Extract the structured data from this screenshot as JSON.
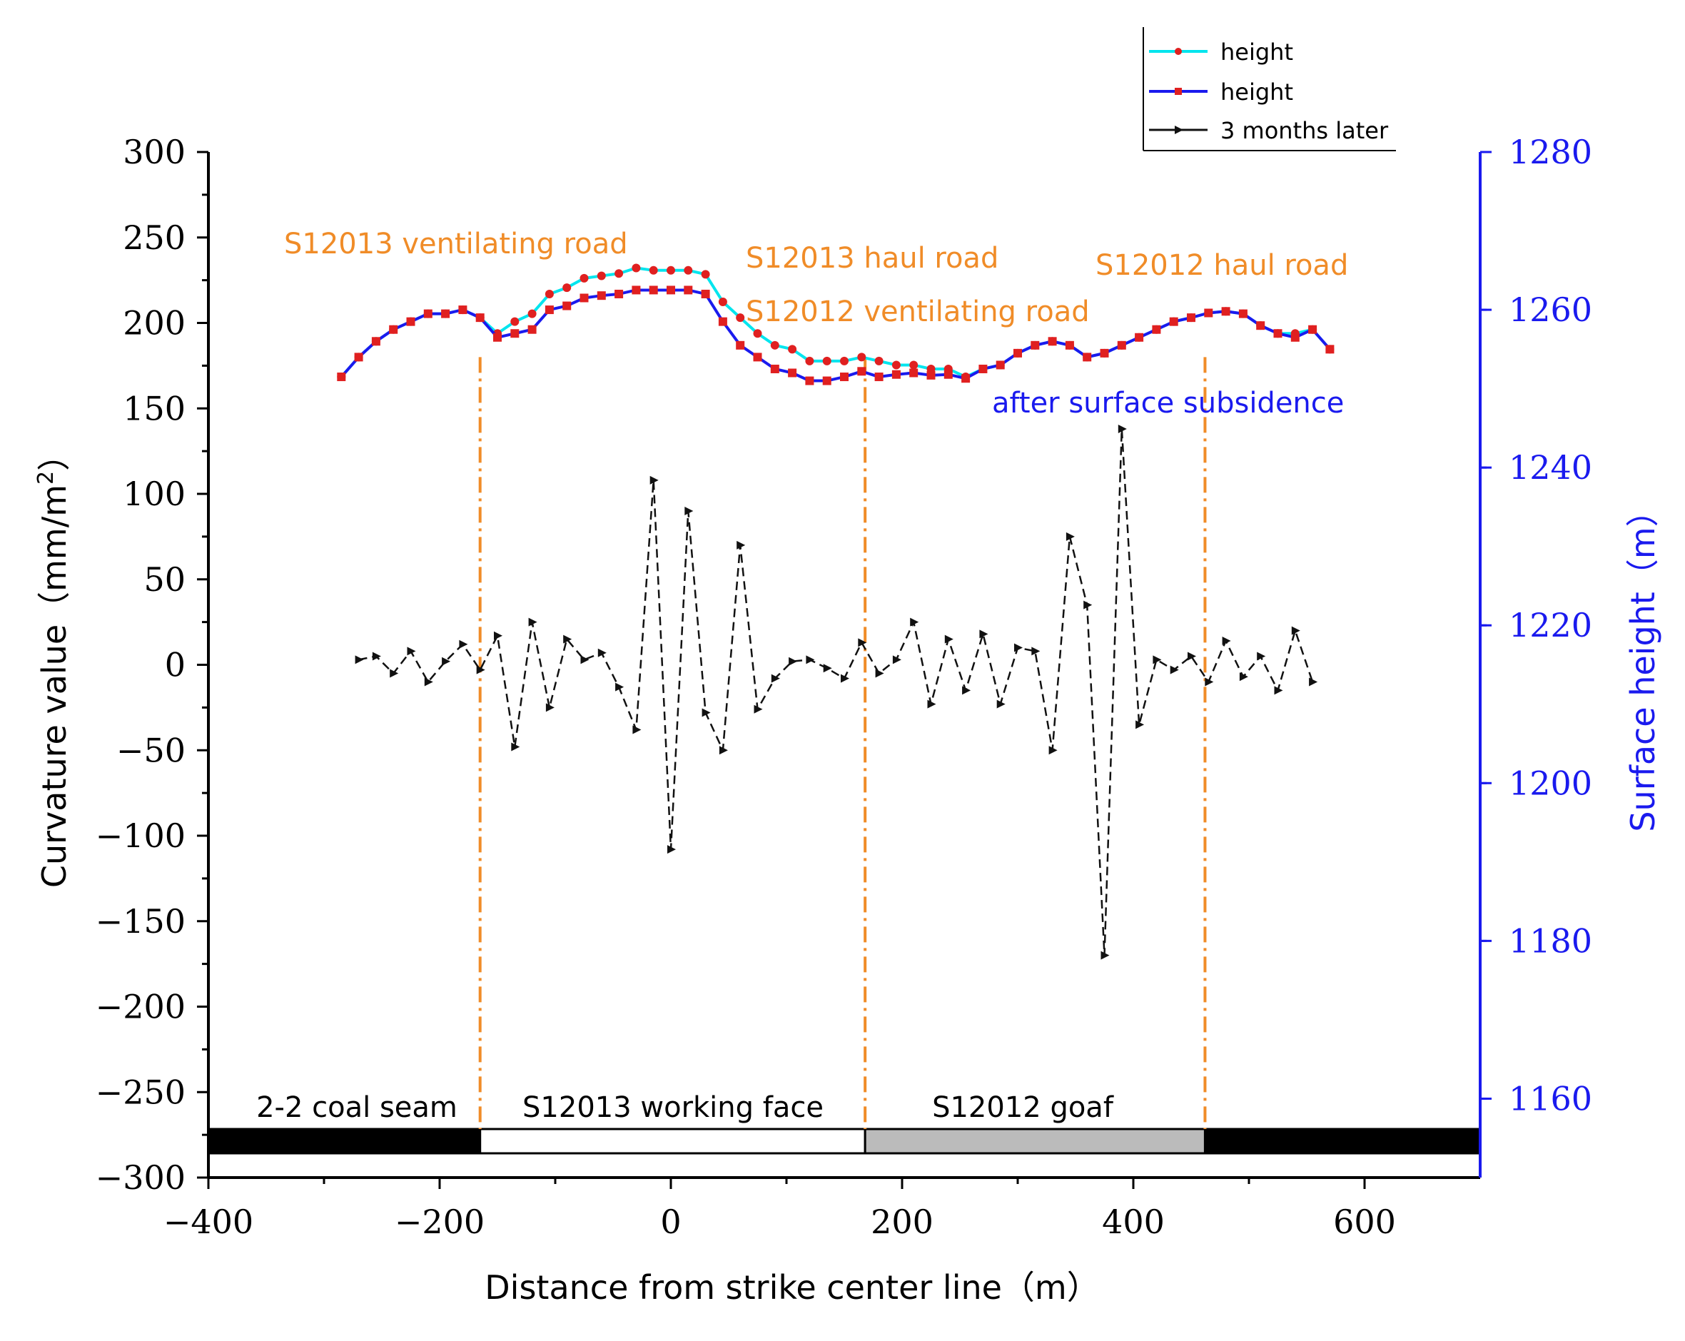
{
  "chart_data": {
    "type": "line",
    "title": "",
    "xlabel": "Distance from strike center line（m）",
    "ylabel_left": "Curvature value（mm/m²）",
    "ylabel_left_parts": {
      "base": "Curvature value（mm/m",
      "sup": "2",
      "tail": "）"
    },
    "ylabel_right": "Surface height（m）",
    "xlim": [
      -400,
      700
    ],
    "ylim_left": [
      -300,
      300
    ],
    "ylim_right": [
      1150,
      1280
    ],
    "x_ticks": [
      -400,
      -200,
      0,
      200,
      400,
      600
    ],
    "x_tick_labels": [
      "−400",
      "−200",
      "0",
      "200",
      "400",
      "600"
    ],
    "y_left_ticks": [
      300,
      250,
      200,
      150,
      100,
      50,
      0,
      -50,
      -100,
      -150,
      -200,
      -250,
      -300
    ],
    "y_left_tick_labels": [
      "300",
      "250",
      "200",
      "150",
      "100",
      "50",
      "0",
      "−50",
      "−100",
      "−150",
      "−200",
      "−250",
      "−300"
    ],
    "y_right_ticks": [
      1280,
      1260,
      1240,
      1220,
      1200,
      1180,
      1160
    ],
    "y_right_tick_labels": [
      "1280",
      "1260",
      "1240",
      "1220",
      "1200",
      "1180",
      "1160"
    ],
    "legend": {
      "position": "top-right",
      "entries": [
        {
          "label": "height",
          "color": "#00e5ee",
          "marker": "#e02020"
        },
        {
          "label": "height",
          "color": "#1a1aee",
          "marker": "#e02020"
        },
        {
          "label": "3 months later",
          "color": "#111111",
          "marker": "#111111"
        }
      ]
    },
    "series": [
      {
        "name": "height",
        "axis": "right",
        "color": "#00e5ee",
        "x": [
          -285,
          -270,
          -255,
          -240,
          -225,
          -210,
          -195,
          -180,
          -165,
          -150,
          -135,
          -120,
          -105,
          -90,
          -75,
          -60,
          -45,
          -30,
          -15,
          0,
          15,
          30,
          45,
          60,
          75,
          90,
          105,
          120,
          135,
          150,
          165,
          180,
          195,
          210,
          225,
          240,
          255,
          270,
          285,
          300,
          315,
          330,
          345,
          360,
          375,
          390,
          405,
          420,
          435,
          450,
          465,
          480,
          495,
          510,
          525,
          540,
          555,
          570
        ],
        "values": [
          1251.5,
          1254,
          1256,
          1257.5,
          1258.5,
          1259.5,
          1259.5,
          1260,
          1259,
          1257,
          1258.5,
          1259.5,
          1262,
          1262.8,
          1264,
          1264.3,
          1264.6,
          1265.3,
          1265,
          1265,
          1265,
          1264.5,
          1261,
          1259,
          1257,
          1255.5,
          1255,
          1253.5,
          1253.5,
          1253.5,
          1254,
          1253.5,
          1253,
          1253,
          1252.5,
          1252.5,
          1251.5,
          1252.5,
          1253,
          1254.5,
          1255.5,
          1256,
          1255.5,
          1254,
          1254.5,
          1255.5,
          1256.5,
          1257.5,
          1258.5,
          1259,
          1259.6,
          1259.8,
          1259.5,
          1258,
          1257,
          1257,
          1257.5,
          1255
        ]
      },
      {
        "name": "height",
        "axis": "right",
        "color": "#1a1aee",
        "x": [
          -285,
          -270,
          -255,
          -240,
          -225,
          -210,
          -195,
          -180,
          -165,
          -150,
          -135,
          -120,
          -105,
          -90,
          -75,
          -60,
          -45,
          -30,
          -15,
          0,
          15,
          30,
          45,
          60,
          75,
          90,
          105,
          120,
          135,
          150,
          165,
          180,
          195,
          210,
          225,
          240,
          255,
          270,
          285,
          300,
          315,
          330,
          345,
          360,
          375,
          390,
          405,
          420,
          435,
          450,
          465,
          480,
          495,
          510,
          525,
          540,
          555,
          570
        ],
        "values": [
          1251.5,
          1254,
          1256,
          1257.5,
          1258.5,
          1259.5,
          1259.5,
          1260,
          1259,
          1256.5,
          1257,
          1257.5,
          1260,
          1260.5,
          1261.5,
          1261.8,
          1262,
          1262.5,
          1262.5,
          1262.5,
          1262.5,
          1262,
          1258.5,
          1255.5,
          1254,
          1252.5,
          1252,
          1251,
          1251,
          1251.5,
          1252.2,
          1251.5,
          1251.8,
          1252,
          1251.7,
          1251.8,
          1251.3,
          1252.5,
          1253,
          1254.5,
          1255.5,
          1256,
          1255.5,
          1254,
          1254.5,
          1255.5,
          1256.5,
          1257.5,
          1258.5,
          1259,
          1259.6,
          1259.8,
          1259.5,
          1258,
          1257,
          1256.5,
          1257.5,
          1255
        ]
      },
      {
        "name": "3 months later",
        "axis": "left",
        "color": "#111111",
        "dashed": true,
        "x": [
          -270,
          -255,
          -240,
          -225,
          -210,
          -195,
          -180,
          -165,
          -150,
          -135,
          -120,
          -105,
          -90,
          -75,
          -60,
          -45,
          -30,
          -15,
          0,
          15,
          30,
          45,
          60,
          75,
          90,
          105,
          120,
          135,
          150,
          165,
          180,
          195,
          210,
          225,
          240,
          255,
          270,
          285,
          300,
          315,
          330,
          345,
          360,
          375,
          390,
          405,
          420,
          435,
          450,
          465,
          480,
          495,
          510,
          525,
          540,
          555
        ],
        "values": [
          3,
          5,
          -5,
          8,
          -10,
          2,
          12,
          -3,
          17,
          -48,
          25,
          -25,
          15,
          3,
          7,
          -13,
          -38,
          108,
          -108,
          90,
          -28,
          -50,
          70,
          -26,
          -8,
          2,
          3,
          -2,
          -8,
          13,
          -5,
          3,
          25,
          -23,
          15,
          -15,
          18,
          -23,
          10,
          8,
          -50,
          75,
          35,
          -170,
          138,
          -35,
          3,
          -3,
          5,
          -10,
          14,
          -7,
          5,
          -15,
          20,
          -10
        ]
      }
    ],
    "annotations": [
      {
        "text": "S12013 ventilating road",
        "color": "#f08c28"
      },
      {
        "text": "S12013 haul road",
        "color": "#f08c28"
      },
      {
        "text": "S12012 ventilating road",
        "color": "#f08c28"
      },
      {
        "text": "S12012 haul road",
        "color": "#f08c28"
      },
      {
        "text": "after surface subsidence",
        "color": "#1a1aee"
      }
    ],
    "vlines": {
      "x": [
        -165,
        168,
        462
      ],
      "color": "#f08c28",
      "style": "dash-dot"
    },
    "strata_bar": [
      {
        "label": "2-2 coal seam",
        "x0": -400,
        "x1": -165,
        "fill": "#000000"
      },
      {
        "label": "S12013 working face",
        "x0": -165,
        "x1": 168,
        "fill": "#ffffff"
      },
      {
        "label": "S12012 goaf",
        "x0": 168,
        "x1": 462,
        "fill": "#bbbbbb"
      },
      {
        "label": "",
        "x0": 462,
        "x1": 700,
        "fill": "#000000"
      }
    ],
    "colors": {
      "axis_right": "#1a1aee",
      "annotation": "#f08c28"
    }
  }
}
